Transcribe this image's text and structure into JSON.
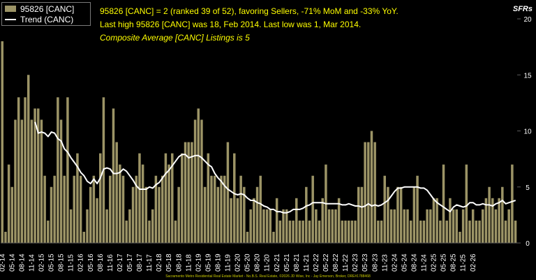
{
  "headline": {
    "line1": "95826 [CANC] = 2 (ranked 39 of 52), favoring Sellers, -71% MoM and -33% YoY.",
    "line2": "Last high 95826 [CANC] was 18, Feb 2014. Last low was 1, Mar 2014.",
    "line3": "Composite Average [CANC] Listings is 5"
  },
  "type_label": "SFRs",
  "footer": "Sacramento Metro Residential Real Estate Market - No.B.S. Real Estate, ©2026 JD Wise, Inc - Jay Emerson, Broker, DRE#1788468",
  "colors": {
    "bar": "#9c9466",
    "trend": "#ffffff",
    "text": "#ffff00",
    "background": "#000000",
    "grid": "#5a5a5a"
  },
  "chart_data": {
    "type": "bar",
    "ylim": [
      0,
      20
    ],
    "yticks": [
      0,
      5,
      10,
      15,
      20
    ],
    "grid": false,
    "legend": "top-left",
    "xtick_labels": [
      "02-14",
      "05-14",
      "08-14",
      "11-14",
      "02-15",
      "05-15",
      "08-15",
      "11-15",
      "02-16",
      "05-16",
      "08-16",
      "11-16",
      "02-17",
      "05-17",
      "08-17",
      "11-17",
      "02-18",
      "05-18",
      "08-18",
      "11-18",
      "02-19",
      "05-19",
      "08-19",
      "11-19",
      "02-20",
      "05-20",
      "08-20",
      "11-20",
      "02-21",
      "05-21",
      "08-21",
      "11-21",
      "02-22",
      "05-22",
      "08-22",
      "11-22",
      "02-23",
      "05-23",
      "08-23",
      "11-23",
      "02-24",
      "05-24",
      "08-24",
      "11-24",
      "02-25",
      "05-25",
      "08-25",
      "11-25",
      "02-26"
    ],
    "series": [
      {
        "name": "95826 [CANC]",
        "kind": "bar",
        "values": [
          18,
          1,
          7,
          5,
          11,
          13,
          11,
          13,
          15,
          11,
          12,
          12,
          11,
          6,
          2,
          5,
          6,
          13,
          11,
          6,
          13,
          3,
          6,
          8,
          6,
          1,
          3,
          5,
          6,
          4,
          8,
          13,
          3,
          6,
          12,
          9,
          7,
          6,
          2,
          3,
          5,
          6,
          8,
          7,
          5,
          2,
          3,
          6,
          5,
          6,
          8,
          7,
          8,
          2,
          5,
          8,
          9,
          9,
          9,
          11,
          12,
          11,
          5,
          8,
          6,
          6,
          5,
          6,
          6,
          9,
          4,
          8,
          4,
          6,
          5,
          1,
          3,
          4,
          5,
          6,
          3,
          3,
          3,
          1,
          4,
          2,
          3,
          3,
          2,
          2,
          4,
          2,
          2,
          5,
          2,
          6,
          3,
          2,
          4,
          7,
          3,
          3,
          3,
          4,
          2,
          2,
          2,
          2,
          2,
          5,
          5,
          9,
          9,
          10,
          9,
          2,
          2,
          6,
          5,
          3,
          3,
          5,
          5,
          3,
          3,
          2,
          5,
          6,
          2,
          2,
          3,
          3,
          4,
          4,
          2,
          7,
          2,
          4,
          3,
          3,
          1,
          3,
          7,
          2,
          3,
          2,
          2,
          3,
          4,
          5,
          4,
          3,
          4,
          5,
          2,
          3,
          7,
          2
        ],
        "trend": {
          "name": "Trend (CANC)",
          "values": [
            10.8,
            9.8,
            9.9,
            9.8,
            9.5,
            9.9,
            9.8,
            9.3,
            9.1,
            8.4,
            8.1,
            7.6,
            7.2,
            6.8,
            6.3,
            6.0,
            5.5,
            5.3,
            5.7,
            5.3,
            5.8,
            6.6,
            6.7,
            6.6,
            6.2,
            6.2,
            6.3,
            6.6,
            6.4,
            6.0,
            5.6,
            5.1,
            4.8,
            4.8,
            4.8,
            5.0,
            4.9,
            5.2,
            5.4,
            5.8,
            6.2,
            6.5,
            6.9,
            7.3,
            7.7,
            7.9,
            7.9,
            7.6,
            7.7,
            7.8,
            7.8,
            7.6,
            7.3,
            7.0,
            6.8,
            6.2,
            5.8,
            5.5,
            5.1,
            4.8,
            4.6,
            4.4,
            4.3,
            4.4,
            4.3,
            4.0,
            3.8,
            3.8,
            3.6,
            3.5,
            3.3,
            3.2,
            3.0,
            3.0,
            2.8,
            2.8,
            2.7,
            2.7,
            2.8,
            3.0,
            3.0,
            3.0,
            3.1,
            3.3,
            3.4,
            3.6,
            3.6,
            3.6,
            3.6,
            3.5,
            3.5,
            3.5,
            3.5,
            3.5,
            3.4,
            3.4,
            3.5,
            3.4,
            3.3,
            3.3,
            3.2,
            3.3,
            3.5,
            3.3,
            3.4,
            3.3,
            3.4,
            3.6,
            3.8,
            4.2,
            4.6,
            4.9,
            4.9,
            5.0,
            5.0,
            5.0,
            5.0,
            5.0,
            4.9,
            4.9,
            4.7,
            4.3,
            3.9,
            3.6,
            3.4,
            3.2,
            3.0,
            2.8,
            3.2,
            3.4,
            3.3,
            3.2,
            3.3,
            3.6,
            3.6,
            3.4,
            3.4,
            3.5,
            3.4,
            3.4,
            3.3,
            3.5,
            3.6,
            3.8,
            3.5,
            3.6,
            3.7,
            3.8
          ]
        }
      }
    ]
  },
  "legend": {
    "bar_label": "95826 [CANC]",
    "line_label": "Trend (CANC)"
  }
}
